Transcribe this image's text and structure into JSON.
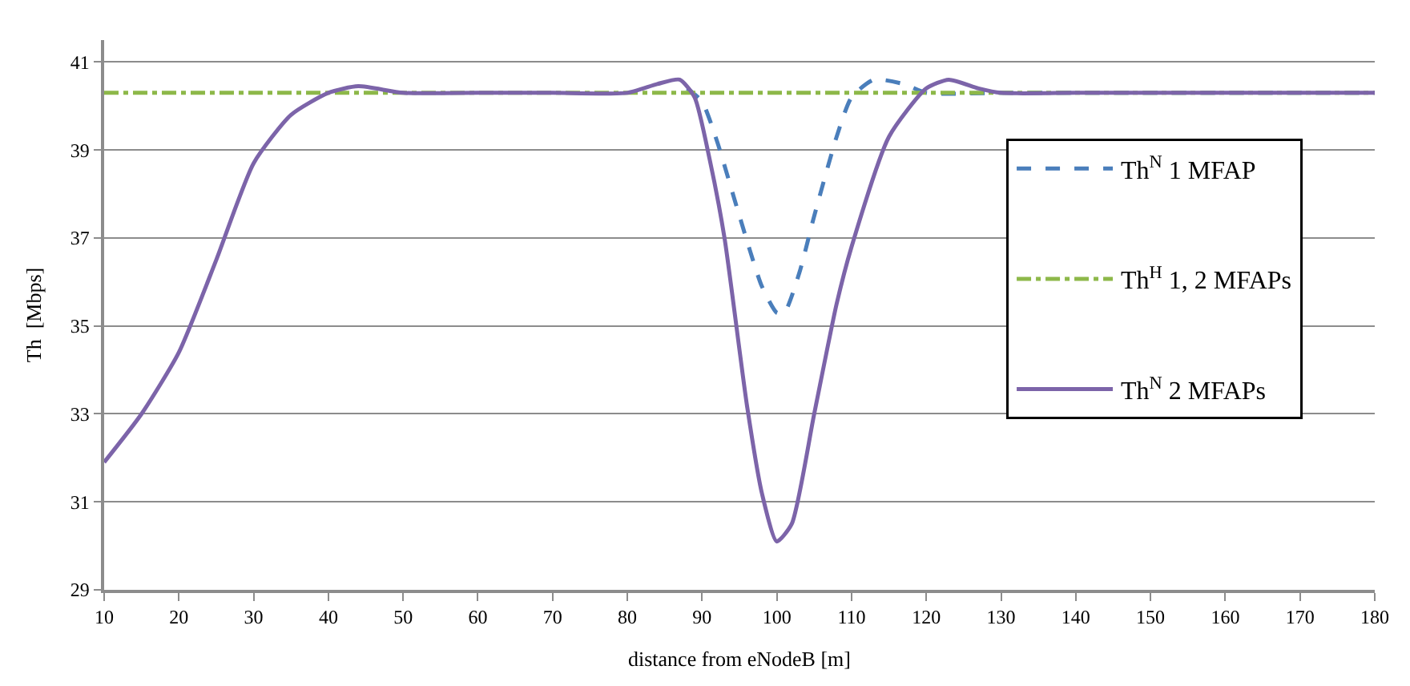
{
  "chart_data": {
    "type": "line",
    "xlabel": "distance from eNodeB [m]",
    "ylabel": "Th  [Mbps]",
    "xlim": [
      10,
      180
    ],
    "xticks": [
      10,
      20,
      30,
      40,
      50,
      60,
      70,
      80,
      90,
      100,
      110,
      120,
      130,
      140,
      150,
      160,
      170,
      180
    ],
    "ylim": [
      29,
      41.5
    ],
    "yticks": [
      29,
      31,
      33,
      35,
      37,
      39,
      41
    ],
    "grid": "y",
    "legend": "right",
    "marker": "none",
    "series": [
      {
        "name": "Th$^{N}$ 1 MFAP",
        "color": "#4a7ebb",
        "line_style": "dashed",
        "x": [
          88,
          90,
          92,
          95,
          98,
          100,
          101,
          103,
          105,
          108,
          110,
          113,
          117,
          120,
          130,
          140,
          150,
          160,
          170,
          180
        ],
        "values": [
          40.4,
          40.1,
          39.2,
          37.5,
          35.9,
          35.3,
          35.3,
          36.2,
          37.5,
          39.3,
          40.2,
          40.6,
          40.5,
          40.3,
          40.3,
          40.3,
          40.3,
          40.3,
          40.3,
          40.3
        ]
      },
      {
        "name": "Th$^{H}$ 1, 2 MFAPs",
        "color": "#8db849",
        "line_style": "dashdot",
        "x": [
          10,
          180
        ],
        "values": [
          40.3,
          40.3
        ]
      },
      {
        "name": "Th$^{N}$ 2 MFAPs",
        "color": "#7c64a9",
        "line_style": "solid",
        "x": [
          10,
          15,
          20,
          25,
          30,
          35,
          40,
          44,
          50,
          60,
          70,
          80,
          84,
          87,
          89,
          91,
          93,
          96,
          98,
          100,
          102,
          105,
          108,
          110,
          115,
          120,
          123,
          127,
          130,
          140,
          150,
          160,
          170,
          180
        ],
        "values": [
          31.9,
          33.0,
          34.4,
          36.5,
          38.7,
          39.8,
          40.3,
          40.45,
          40.3,
          40.3,
          40.3,
          40.3,
          40.5,
          40.6,
          40.2,
          38.8,
          37.0,
          33.2,
          31.2,
          30.1,
          30.5,
          33.0,
          35.5,
          36.8,
          39.3,
          40.4,
          40.6,
          40.4,
          40.3,
          40.3,
          40.3,
          40.3,
          40.3,
          40.3
        ]
      }
    ]
  }
}
